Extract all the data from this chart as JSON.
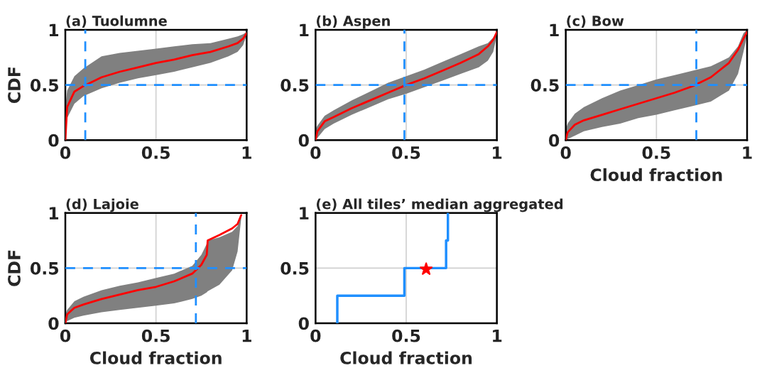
{
  "chart_data": [
    {
      "type": "line",
      "title": "(a) Tuolumne",
      "ylabel": "CDF",
      "xlim": [
        0,
        1
      ],
      "ylim": [
        0,
        1
      ],
      "xticks": [
        0,
        0.5,
        1
      ],
      "yticks": [
        0,
        0.5,
        1
      ],
      "grid": true,
      "series": [
        {
          "color": "#ff0000",
          "x": [
            0,
            0.01,
            0.05,
            0.1,
            0.2,
            0.3,
            0.4,
            0.5,
            0.6,
            0.7,
            0.8,
            0.9,
            0.95,
            0.98,
            1
          ],
          "values": [
            0,
            0.3,
            0.44,
            0.49,
            0.57,
            0.62,
            0.66,
            0.7,
            0.73,
            0.77,
            0.8,
            0.85,
            0.88,
            0.92,
            0.97
          ],
          "lower": [
            0,
            0.2,
            0.33,
            0.4,
            0.47,
            0.52,
            0.56,
            0.59,
            0.62,
            0.66,
            0.7,
            0.76,
            0.8,
            0.86,
            0.95
          ],
          "upper": [
            0.3,
            0.45,
            0.58,
            0.65,
            0.76,
            0.79,
            0.81,
            0.83,
            0.85,
            0.87,
            0.88,
            0.92,
            0.94,
            0.96,
            0.98
          ]
        }
      ],
      "ref_lines": [
        {
          "axis": "x",
          "value": 0.11,
          "color": "#1f8fff",
          "line_style": "dashed"
        },
        {
          "axis": "y",
          "value": 0.5,
          "color": "#1f8fff",
          "line_style": "dashed"
        }
      ]
    },
    {
      "type": "line",
      "title": "(b) Aspen",
      "xlim": [
        0,
        1
      ],
      "ylim": [
        0,
        1
      ],
      "xticks": [
        0,
        0.5,
        1
      ],
      "yticks": [
        0,
        0.5,
        1
      ],
      "grid": true,
      "series": [
        {
          "color": "#ff0000",
          "x": [
            0,
            0.01,
            0.05,
            0.1,
            0.2,
            0.3,
            0.4,
            0.5,
            0.6,
            0.7,
            0.8,
            0.9,
            0.95,
            0.98,
            1
          ],
          "values": [
            0,
            0.08,
            0.17,
            0.21,
            0.29,
            0.36,
            0.43,
            0.5,
            0.56,
            0.63,
            0.7,
            0.78,
            0.85,
            0.91,
            0.98
          ],
          "lower": [
            0,
            0.02,
            0.1,
            0.15,
            0.23,
            0.3,
            0.37,
            0.42,
            0.48,
            0.54,
            0.6,
            0.66,
            0.72,
            0.8,
            0.95
          ],
          "upper": [
            0.1,
            0.13,
            0.22,
            0.27,
            0.36,
            0.44,
            0.52,
            0.58,
            0.64,
            0.71,
            0.78,
            0.85,
            0.88,
            0.93,
            0.98
          ]
        }
      ],
      "ref_lines": [
        {
          "axis": "x",
          "value": 0.49,
          "color": "#1f8fff",
          "line_style": "dashed"
        },
        {
          "axis": "y",
          "value": 0.5,
          "color": "#1f8fff",
          "line_style": "dashed"
        }
      ]
    },
    {
      "type": "line",
      "title": "(c) Bow",
      "xlabel": "Cloud fraction",
      "xlim": [
        0,
        1
      ],
      "ylim": [
        0,
        1
      ],
      "xticks": [
        0,
        0.5,
        1
      ],
      "yticks": [
        0,
        0.5,
        1
      ],
      "grid": true,
      "series": [
        {
          "color": "#ff0000",
          "x": [
            0,
            0.01,
            0.05,
            0.1,
            0.2,
            0.3,
            0.4,
            0.5,
            0.6,
            0.7,
            0.8,
            0.9,
            0.95,
            0.98,
            1
          ],
          "values": [
            0,
            0.07,
            0.14,
            0.18,
            0.23,
            0.28,
            0.33,
            0.38,
            0.43,
            0.49,
            0.57,
            0.7,
            0.82,
            0.92,
            0.98
          ],
          "lower": [
            0,
            0.01,
            0.04,
            0.08,
            0.12,
            0.15,
            0.2,
            0.23,
            0.27,
            0.31,
            0.35,
            0.45,
            0.6,
            0.8,
            0.95
          ],
          "upper": [
            0.1,
            0.15,
            0.24,
            0.3,
            0.38,
            0.45,
            0.5,
            0.55,
            0.59,
            0.63,
            0.67,
            0.75,
            0.85,
            0.97,
            1
          ]
        }
      ],
      "ref_lines": [
        {
          "axis": "x",
          "value": 0.72,
          "color": "#1f8fff",
          "line_style": "dashed"
        },
        {
          "axis": "y",
          "value": 0.5,
          "color": "#1f8fff",
          "line_style": "dashed"
        }
      ]
    },
    {
      "type": "line",
      "title": "(d) Lajoie",
      "xlabel": "Cloud fraction",
      "ylabel": "CDF",
      "xlim": [
        0,
        1
      ],
      "ylim": [
        0,
        1
      ],
      "xticks": [
        0,
        0.5,
        1
      ],
      "yticks": [
        0,
        0.5,
        1
      ],
      "grid": true,
      "series": [
        {
          "color": "#ff0000",
          "x": [
            0,
            0.01,
            0.05,
            0.1,
            0.2,
            0.3,
            0.4,
            0.5,
            0.6,
            0.7,
            0.75,
            0.78,
            0.785,
            0.85,
            0.92,
            0.95,
            0.97
          ],
          "values": [
            0,
            0.08,
            0.14,
            0.17,
            0.22,
            0.26,
            0.3,
            0.33,
            0.38,
            0.45,
            0.53,
            0.62,
            0.75,
            0.8,
            0.86,
            0.9,
            0.98
          ],
          "lower": [
            0,
            0.02,
            0.05,
            0.07,
            0.1,
            0.12,
            0.14,
            0.16,
            0.18,
            0.22,
            0.25,
            0.28,
            0.29,
            0.35,
            0.48,
            0.65,
            0.95
          ],
          "upper": [
            0.08,
            0.12,
            0.2,
            0.24,
            0.3,
            0.34,
            0.37,
            0.41,
            0.45,
            0.52,
            0.62,
            0.72,
            0.75,
            0.78,
            0.83,
            0.88,
            0.98
          ]
        }
      ],
      "ref_lines": [
        {
          "axis": "x",
          "value": 0.72,
          "color": "#1f8fff",
          "line_style": "dashed"
        },
        {
          "axis": "y",
          "value": 0.5,
          "color": "#1f8fff",
          "line_style": "dashed"
        }
      ]
    },
    {
      "type": "step",
      "title": "(e) All tiles’ median aggregated",
      "xlabel": "Cloud fraction",
      "xlim": [
        0,
        1
      ],
      "ylim": [
        0,
        1
      ],
      "xticks": [
        0,
        0.5,
        1
      ],
      "yticks": [
        0,
        0.5,
        1
      ],
      "grid": true,
      "series": [
        {
          "color": "#1f8fff",
          "x": [
            0.12,
            0.12,
            0.49,
            0.72,
            0.73
          ],
          "values": [
            0,
            0.25,
            0.5,
            0.75,
            1
          ]
        },
        {
          "type": "scatter",
          "color": "#ff0000",
          "marker": "star",
          "x": [
            0.61
          ],
          "values": [
            0.49
          ]
        }
      ]
    }
  ]
}
